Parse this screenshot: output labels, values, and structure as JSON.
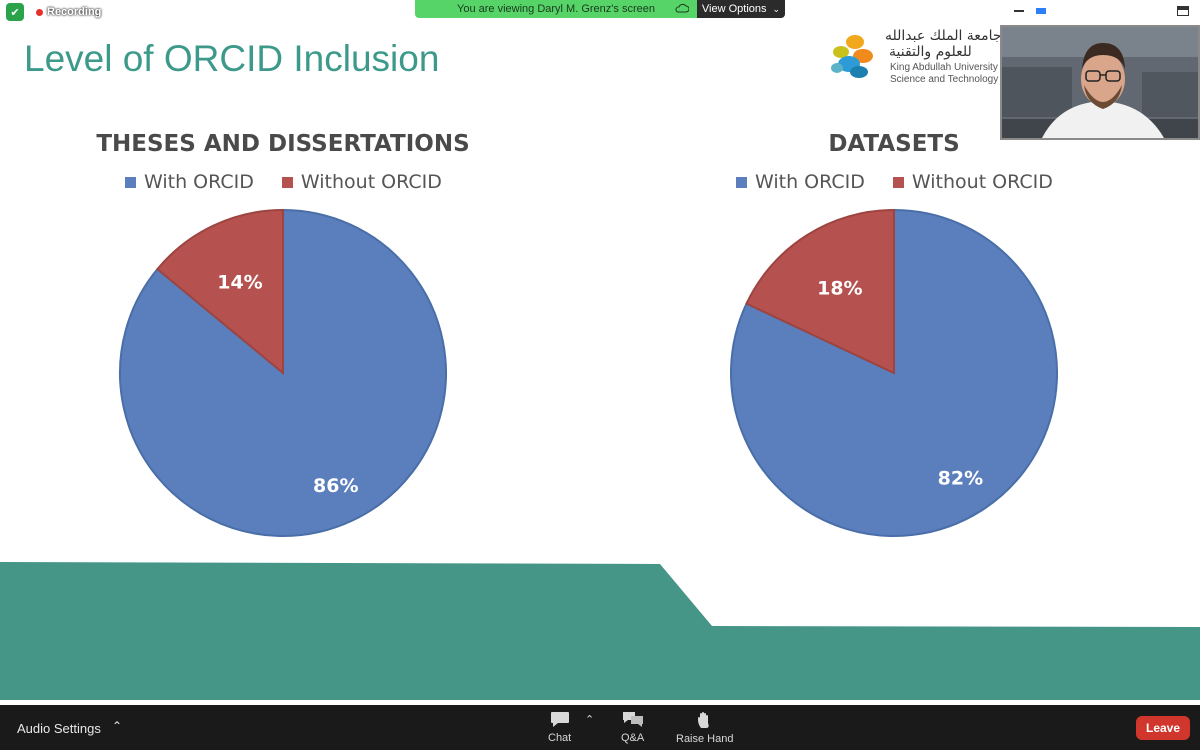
{
  "topbar": {
    "recording_label": "Recording",
    "viewing_banner": "You are viewing Daryl M. Grenz's screen",
    "view_options_label": "View Options"
  },
  "slide": {
    "title": "Level of ORCID Inclusion",
    "logo": {
      "arabic_line1": "جامعة الملك عبدالله",
      "arabic_line2": "للعلوم والتقنية",
      "english_line1": "King Abdullah University of",
      "english_line2": "Science and Technology"
    }
  },
  "chart_data": [
    {
      "type": "pie",
      "title": "THESES AND DISSERTATIONS",
      "categories": [
        "With ORCID",
        "Without ORCID"
      ],
      "values": [
        86,
        14
      ],
      "labels": [
        "86%",
        "14%"
      ],
      "colors": [
        "#5b7fbd",
        "#b5524f"
      ],
      "legend": "top"
    },
    {
      "type": "pie",
      "title": "DATASETS",
      "categories": [
        "With ORCID",
        "Without ORCID"
      ],
      "values": [
        82,
        18
      ],
      "labels": [
        "82%",
        "18%"
      ],
      "colors": [
        "#5b7fbd",
        "#b5524f"
      ],
      "legend": "top"
    }
  ],
  "colors": {
    "accent_teal": "#469688",
    "title_teal": "#3d9a8a",
    "leave_red": "#d1362c"
  },
  "toolbar": {
    "audio_settings_label": "Audio Settings",
    "chat_label": "Chat",
    "qa_label": "Q&A",
    "raise_hand_label": "Raise Hand",
    "leave_label": "Leave"
  }
}
